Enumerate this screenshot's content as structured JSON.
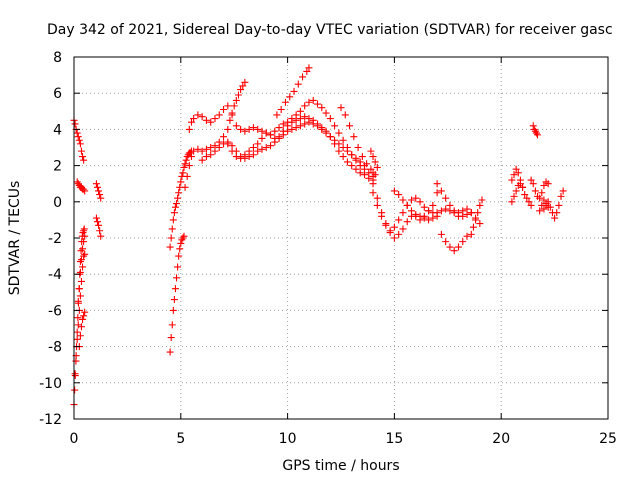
{
  "chart_data": {
    "type": "scatter",
    "title": "Day 342 of 2021, Sidereal Day-to-day VTEC variation (SDTVAR) for receiver gasc",
    "xlabel": "GPS time / hours",
    "ylabel": "SDTVAR / TECUs",
    "xlim": [
      0,
      25
    ],
    "ylim": [
      -12,
      8
    ],
    "x_ticks": [
      "0",
      "5",
      "10",
      "15",
      "20",
      "25"
    ],
    "y_ticks": [
      "8",
      "6",
      "4",
      "2",
      "0",
      "-2",
      "-4",
      "-6",
      "-8",
      "-10",
      "-12"
    ],
    "grid": true,
    "marker": "+",
    "color": "#ff0000",
    "series": [
      {
        "name": "s1",
        "x": [
          0.0,
          0.05,
          0.1,
          0.15,
          0.2,
          0.25,
          0.3,
          0.35,
          0.4,
          0.45
        ],
        "y": [
          4.5,
          4.3,
          4.0,
          3.8,
          3.6,
          3.4,
          3.2,
          2.8,
          2.5,
          2.3
        ]
      },
      {
        "name": "s2",
        "x": [
          0.15,
          0.2,
          0.25,
          0.3,
          0.35,
          0.4,
          0.45,
          0.5
        ],
        "y": [
          1.1,
          1.0,
          0.9,
          0.8,
          0.8,
          0.7,
          0.7,
          0.6
        ]
      },
      {
        "name": "s3",
        "x": [
          0.0,
          0.03,
          0.06,
          0.09,
          0.12,
          0.15,
          0.18,
          0.21,
          0.24,
          0.27,
          0.3,
          0.33,
          0.36,
          0.39,
          0.42,
          0.45,
          0.48
        ],
        "y": [
          -11.2,
          -10.4,
          -9.6,
          -8.8,
          -8.0,
          -7.2,
          -6.4,
          -5.6,
          -4.8,
          -4.0,
          -3.3,
          -2.7,
          -2.2,
          -1.9,
          -1.7,
          -1.6,
          -1.5
        ]
      },
      {
        "name": "s4",
        "x": [
          0.05,
          0.1,
          0.15,
          0.2,
          0.25,
          0.3,
          0.35,
          0.4,
          0.45,
          0.5
        ],
        "y": [
          -9.5,
          -8.5,
          -7.6,
          -6.8,
          -6.0,
          -5.2,
          -4.4,
          -3.6,
          -3.0,
          -2.9
        ]
      },
      {
        "name": "s5",
        "x": [
          0.2,
          0.25,
          0.3,
          0.35,
          0.4,
          0.45,
          0.5
        ],
        "y": [
          -5.5,
          -4.8,
          -3.9,
          -3.2,
          -2.6,
          -2.2,
          -1.9
        ]
      },
      {
        "name": "s6",
        "x": [
          0.25,
          0.3,
          0.35,
          0.4,
          0.45,
          0.5
        ],
        "y": [
          -8.0,
          -7.4,
          -6.9,
          -6.5,
          -6.3,
          -6.1
        ]
      },
      {
        "name": "s7",
        "x": [
          1.05,
          1.1,
          1.15,
          1.2,
          1.25
        ],
        "y": [
          1.0,
          0.8,
          0.6,
          0.4,
          0.2
        ]
      },
      {
        "name": "s8",
        "x": [
          1.05,
          1.1,
          1.15,
          1.2,
          1.25
        ],
        "y": [
          -0.9,
          -1.1,
          -1.3,
          -1.6,
          -1.9
        ]
      },
      {
        "name": "s9",
        "x": [
          4.5,
          4.55,
          4.6,
          4.65,
          4.7,
          4.75,
          4.8,
          4.85,
          4.9,
          4.95,
          5.0,
          5.05,
          5.1,
          5.15,
          5.2,
          5.25,
          5.3,
          5.35,
          5.4,
          5.45,
          5.5
        ],
        "y": [
          -2.5,
          -2.0,
          -1.5,
          -1.0,
          -0.6,
          -0.3,
          -0.1,
          0.2,
          0.5,
          0.8,
          1.1,
          1.4,
          1.6,
          1.9,
          2.1,
          2.3,
          2.5,
          2.6,
          2.7,
          2.7,
          2.8
        ]
      },
      {
        "name": "s10",
        "x": [
          4.5,
          4.55,
          4.6,
          4.65,
          4.7,
          4.75,
          4.8,
          4.85,
          4.9,
          4.95,
          5.0,
          5.05,
          5.1,
          5.15
        ],
        "y": [
          -8.3,
          -7.5,
          -6.8,
          -6.0,
          -5.4,
          -4.8,
          -4.2,
          -3.6,
          -3.0,
          -2.6,
          -2.3,
          -2.1,
          -2.0,
          -1.9
        ]
      },
      {
        "name": "s11",
        "x": [
          5.2,
          5.3,
          5.4,
          5.5,
          5.6,
          5.8,
          6.0,
          6.2,
          6.4,
          6.6,
          6.8,
          7.0,
          7.2,
          7.4,
          7.6,
          7.8,
          8.0,
          8.2,
          8.4,
          8.6,
          8.8,
          9.0,
          9.2,
          9.4,
          9.6,
          9.8,
          10.0,
          10.2,
          10.4,
          10.6,
          10.8,
          11.0,
          11.2,
          11.4,
          11.6,
          11.8,
          12.0,
          12.2,
          12.4,
          12.6,
          12.8,
          13.0,
          13.2,
          13.4,
          13.6,
          13.8,
          14.0
        ],
        "y": [
          0.8,
          1.4,
          2.0,
          2.5,
          2.8,
          2.9,
          2.8,
          2.9,
          3.0,
          3.1,
          3.3,
          3.6,
          3.2,
          2.8,
          2.5,
          2.4,
          2.6,
          2.8,
          3.0,
          3.2,
          3.5,
          3.8,
          3.7,
          3.5,
          3.6,
          3.9,
          4.2,
          4.4,
          4.5,
          4.6,
          4.7,
          4.6,
          4.5,
          4.3,
          4.1,
          3.9,
          3.6,
          3.2,
          2.8,
          2.5,
          2.2,
          2.0,
          1.8,
          1.6,
          1.5,
          1.3,
          1.2
        ]
      },
      {
        "name": "s12",
        "x": [
          5.4,
          5.5,
          5.6,
          5.8,
          6.0,
          6.2,
          6.4,
          6.6,
          6.8,
          7.0,
          7.2,
          7.4,
          7.6,
          7.8,
          8.0,
          8.2,
          8.4,
          8.6,
          8.8,
          9.0,
          9.2,
          9.4,
          9.6,
          9.8,
          10.0,
          10.2,
          10.4,
          10.6,
          10.8,
          11.0,
          11.2,
          11.4,
          11.6,
          11.8,
          12.0,
          12.2,
          12.4,
          12.6,
          12.8,
          13.0,
          13.2,
          13.4,
          13.6,
          13.8,
          14.0
        ],
        "y": [
          4.0,
          4.4,
          4.6,
          4.8,
          4.7,
          4.5,
          4.4,
          4.6,
          4.8,
          5.1,
          5.3,
          4.8,
          4.2,
          4.0,
          3.9,
          4.0,
          4.1,
          4.0,
          3.9,
          3.8,
          3.7,
          3.9,
          4.1,
          4.3,
          4.4,
          4.6,
          4.8,
          5.0,
          5.3,
          5.5,
          5.6,
          5.4,
          5.2,
          4.9,
          4.6,
          4.2,
          3.8,
          3.4,
          3.0,
          2.6,
          2.3,
          2.0,
          1.8,
          1.6,
          1.4
        ]
      },
      {
        "name": "s13",
        "x": [
          6.0,
          6.2,
          6.4,
          6.6,
          6.8,
          7.0,
          7.2,
          7.4,
          7.6,
          7.8,
          8.0,
          8.2,
          8.4,
          8.6,
          8.8,
          9.0,
          9.2,
          9.4,
          9.6,
          9.8,
          10.0,
          10.2,
          10.4,
          10.6,
          10.8,
          11.0,
          11.2,
          11.4,
          11.6,
          11.8,
          12.0,
          12.2,
          12.4,
          12.6,
          12.8,
          13.0,
          13.2,
          13.4,
          13.6
        ],
        "y": [
          2.3,
          2.5,
          2.6,
          2.8,
          3.0,
          3.2,
          3.3,
          3.1,
          2.8,
          2.5,
          2.4,
          2.5,
          2.6,
          2.8,
          2.9,
          3.0,
          3.1,
          3.3,
          3.5,
          3.7,
          3.9,
          4.0,
          4.1,
          4.2,
          4.3,
          4.4,
          4.3,
          4.2,
          4.0,
          3.8,
          3.6,
          3.4,
          3.2,
          3.0,
          2.8,
          2.6,
          2.4,
          2.2,
          2.0
        ]
      },
      {
        "name": "s14",
        "x": [
          7.2,
          7.3,
          7.4,
          7.5,
          7.6,
          7.7,
          7.8,
          7.9,
          8.0
        ],
        "y": [
          4.0,
          4.5,
          4.9,
          5.3,
          5.6,
          5.9,
          6.2,
          6.4,
          6.6
        ]
      },
      {
        "name": "s15",
        "x": [
          9.5,
          9.7,
          9.9,
          10.1,
          10.3,
          10.5,
          10.7,
          10.9,
          11.0
        ],
        "y": [
          4.8,
          5.1,
          5.5,
          5.8,
          6.1,
          6.5,
          6.9,
          7.2,
          7.4
        ]
      },
      {
        "name": "s16",
        "x": [
          12.5,
          12.7,
          12.9,
          13.1,
          13.3,
          13.5,
          13.7,
          13.9,
          14.0,
          14.1
        ],
        "y": [
          5.2,
          4.8,
          4.2,
          3.6,
          3.0,
          2.5,
          2.1,
          1.8,
          1.6,
          1.5
        ]
      },
      {
        "name": "s17",
        "x": [
          13.9,
          14.0,
          14.1,
          14.2
        ],
        "y": [
          2.8,
          2.5,
          2.2,
          1.9
        ]
      },
      {
        "name": "s18",
        "x": [
          14.0,
          14.2,
          14.4,
          14.6,
          14.8,
          15.0,
          15.2,
          15.4,
          15.6,
          15.8,
          16.0,
          16.2,
          16.4,
          16.6,
          16.8,
          17.0,
          17.2,
          17.4,
          17.6,
          17.8,
          18.0,
          18.2,
          18.4,
          18.6
        ],
        "y": [
          1.0,
          0.2,
          -0.6,
          -1.2,
          -1.6,
          -1.4,
          -1.0,
          -0.6,
          -0.2,
          0.1,
          0.2,
          0.0,
          -0.3,
          -0.5,
          -0.6,
          -0.6,
          -0.5,
          -0.4,
          -0.5,
          -0.6,
          -0.8,
          -0.8,
          -0.7,
          -0.6
        ]
      },
      {
        "name": "s19",
        "x": [
          14.0,
          14.2,
          14.4,
          14.6,
          14.8,
          15.0,
          15.2,
          15.4,
          15.6,
          15.8,
          16.0,
          16.2,
          16.4,
          16.6,
          16.8,
          17.0
        ],
        "y": [
          0.5,
          -0.2,
          -0.8,
          -1.3,
          -1.7,
          -2.0,
          -1.8,
          -1.5,
          -1.1,
          -0.8,
          -0.7,
          -0.8,
          -0.9,
          -1.0,
          -0.9,
          -0.8
        ]
      },
      {
        "name": "s20",
        "x": [
          15.0,
          15.2,
          15.4,
          15.6,
          15.8,
          16.0,
          16.2,
          16.4,
          16.6,
          16.8,
          17.0
        ],
        "y": [
          0.6,
          0.4,
          0.1,
          -0.2,
          -0.5,
          -0.8,
          -1.0,
          -0.8,
          -0.5,
          -0.2,
          0.5
        ]
      },
      {
        "name": "s21",
        "x": [
          17.2,
          17.4,
          17.6,
          17.8,
          18.0,
          18.2,
          18.4
        ],
        "y": [
          -1.8,
          -2.2,
          -2.5,
          -2.7,
          -2.5,
          -2.2,
          -1.9
        ]
      },
      {
        "name": "s22",
        "x": [
          17.0,
          17.2,
          17.4,
          17.6,
          17.8,
          18.0,
          18.2,
          18.4,
          18.6,
          18.8,
          19.0
        ],
        "y": [
          1.0,
          0.6,
          0.2,
          -0.2,
          -0.5,
          -0.6,
          -0.5,
          -0.4,
          -0.6,
          -0.9,
          -1.2
        ]
      },
      {
        "name": "s23",
        "x": [
          18.6,
          18.7,
          18.8,
          18.9,
          19.0,
          19.1
        ],
        "y": [
          -1.8,
          -1.4,
          -1.0,
          -0.6,
          -0.2,
          0.1
        ]
      },
      {
        "name": "s24",
        "x": [
          20.5,
          20.6,
          20.7,
          20.8,
          20.9,
          21.0,
          21.1,
          21.2,
          21.3,
          21.4
        ],
        "y": [
          1.2,
          1.5,
          1.8,
          1.6,
          1.2,
          0.8,
          0.4,
          0.2,
          0.0,
          -0.2
        ]
      },
      {
        "name": "s25",
        "x": [
          20.5,
          20.6,
          20.7,
          20.8,
          20.9,
          21.0
        ],
        "y": [
          0.0,
          0.3,
          0.6,
          0.9,
          1.0,
          0.8
        ]
      },
      {
        "name": "s26",
        "x": [
          21.5,
          21.55,
          21.6,
          21.65,
          21.7
        ],
        "y": [
          4.2,
          4.0,
          3.9,
          3.8,
          3.7
        ]
      },
      {
        "name": "s27",
        "x": [
          21.4,
          21.5,
          21.6,
          21.7,
          21.8,
          21.9,
          22.0,
          22.1,
          22.2
        ],
        "y": [
          1.2,
          1.0,
          0.6,
          0.3,
          0.2,
          0.5,
          0.9,
          1.1,
          1.0
        ]
      },
      {
        "name": "s28",
        "x": [
          22.0,
          22.1,
          22.2,
          22.3,
          22.4,
          22.5,
          22.6,
          22.7,
          22.8,
          22.9
        ],
        "y": [
          -0.4,
          -0.2,
          0.0,
          -0.3,
          -0.6,
          -0.9,
          -0.6,
          -0.2,
          0.3,
          0.6
        ]
      },
      {
        "name": "s29",
        "x": [
          21.8,
          21.9,
          22.0,
          22.1,
          22.2
        ],
        "y": [
          -0.5,
          -0.2,
          0.1,
          -0.1,
          -0.3
        ]
      }
    ]
  }
}
